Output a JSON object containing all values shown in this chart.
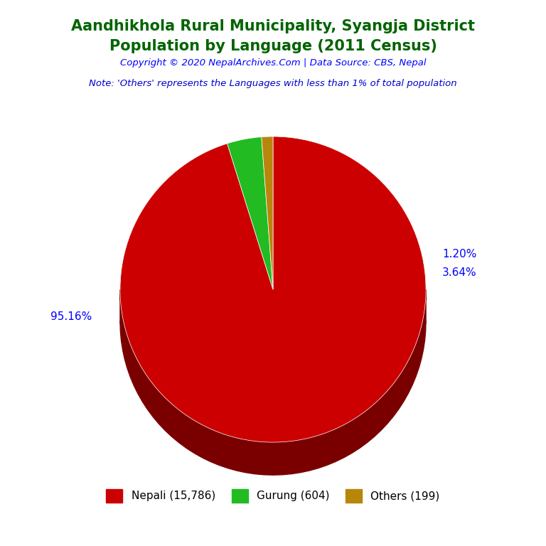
{
  "title_line1": "Aandhikhola Rural Municipality, Syangja District",
  "title_line2": "Population by Language (2011 Census)",
  "title_color": "#006400",
  "copyright_text": "Copyright © 2020 NepalArchives.Com | Data Source: CBS, Nepal",
  "copyright_color": "#0000FF",
  "note_text": "Note: 'Others' represents the Languages with less than 1% of total population",
  "note_color": "#0000CD",
  "labels": [
    "Nepali (15,786)",
    "Gurung (604)",
    "Others (199)"
  ],
  "values": [
    15786,
    604,
    199
  ],
  "percentages": [
    "95.16%",
    "3.64%",
    "1.20%"
  ],
  "colors": [
    "#CC0000",
    "#22BB22",
    "#B8860B"
  ],
  "shadow_colors": [
    "#7A0000",
    "#145214",
    "#6B5000"
  ],
  "background_color": "#FFFFFF",
  "startangle": 90
}
